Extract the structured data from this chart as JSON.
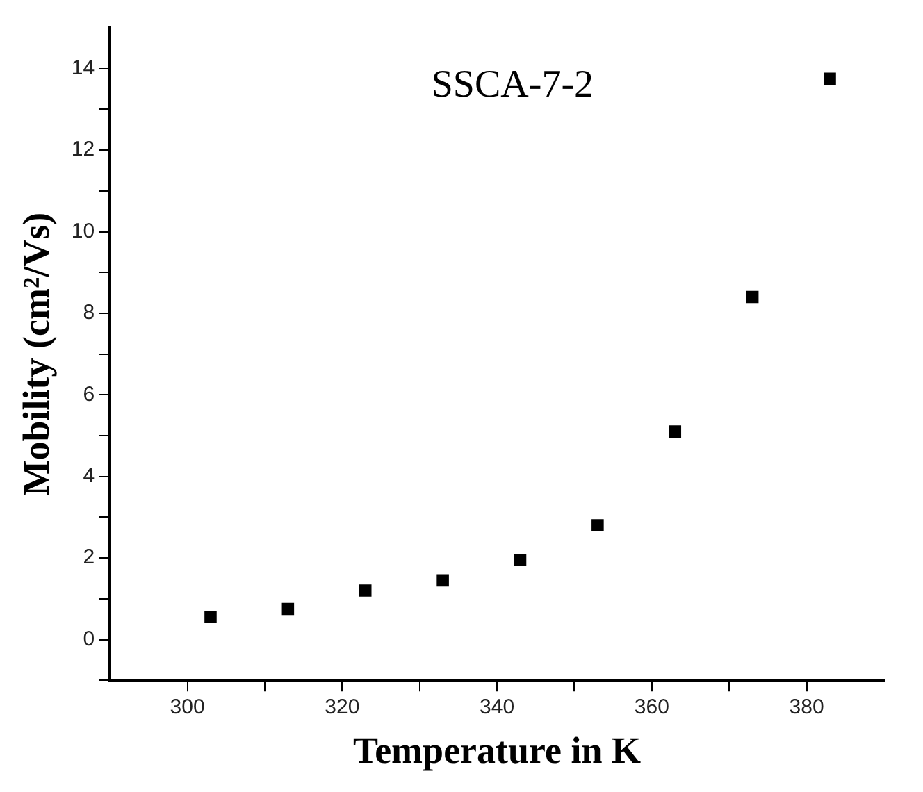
{
  "chart_data": {
    "type": "scatter",
    "xlabel": "Temperature in K",
    "ylabel": "Mobility (cm²/Vs)",
    "annotations": [
      "SSCA-7-2"
    ],
    "x": [
      303,
      313,
      323,
      333,
      343,
      353,
      363,
      373,
      383
    ],
    "series": [
      {
        "color": "#000000",
        "values": [
          0.55,
          0.75,
          1.2,
          1.45,
          1.95,
          2.8,
          5.1,
          8.4,
          13.75
        ]
      }
    ],
    "marker": "square",
    "grid": false,
    "legend": false,
    "xlim": [
      290,
      390
    ],
    "xticks": [
      300,
      {
        "value": 310,
        "label": null
      },
      320,
      {
        "value": 330,
        "label": null
      },
      340,
      {
        "value": 350,
        "label": null
      },
      360,
      {
        "value": 370,
        "label": null
      },
      380
    ],
    "ylim": [
      -1,
      15
    ],
    "yticks": [
      {
        "value": -1,
        "label": null
      },
      0,
      {
        "value": 1,
        "label": null
      },
      2,
      {
        "value": 3,
        "label": null
      },
      4,
      {
        "value": 5,
        "label": null
      },
      6,
      {
        "value": 7,
        "label": null
      },
      8,
      {
        "value": 9,
        "label": null
      },
      10,
      {
        "value": 11,
        "label": null
      },
      12,
      {
        "value": 13,
        "label": null
      },
      14
    ]
  }
}
